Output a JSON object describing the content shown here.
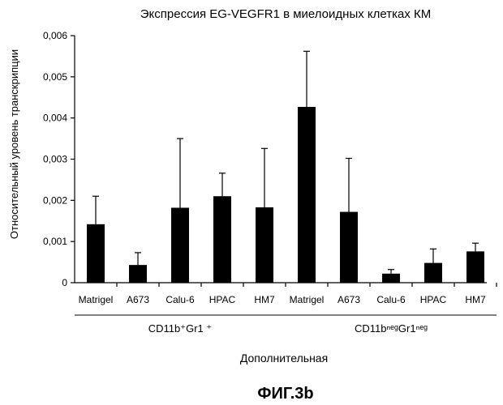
{
  "chart_data": {
    "type": "bar",
    "title": "Экспрессия EG-VEGFR1 в миелоидных клетках КМ",
    "ylabel": "Относительный уровень транскрипции",
    "xlabel": "Дополнительная",
    "ylim": [
      0,
      0.006
    ],
    "yticks": [
      "0",
      "0,001",
      "0,002",
      "0,003",
      "0,004",
      "0,005",
      "0,006"
    ],
    "categories": [
      "Matrigel",
      "A673",
      "Calu-6",
      "HPAC",
      "HM7",
      "Matrigel",
      "A673",
      "Calu-6",
      "HPAC",
      "HM7"
    ],
    "values": [
      0.00142,
      0.00043,
      0.00182,
      0.0021,
      0.00183,
      0.00427,
      0.00172,
      0.00022,
      0.00048,
      0.00076
    ],
    "error_upper": [
      0.0021,
      0.00073,
      0.0035,
      0.00266,
      0.00326,
      0.00562,
      0.00302,
      0.00032,
      0.00082,
      0.00096
    ],
    "groups": [
      {
        "label": "CD11b⁺Gr1 ⁺",
        "start": 0,
        "end": 4
      },
      {
        "label": "CD11bⁿᵉᵍGr1ⁿᵉᵍ",
        "start": 5,
        "end": 9
      }
    ],
    "bar_color": "#000000",
    "grid": false,
    "legend": "none"
  },
  "figure_label": "ФИГ.3b"
}
